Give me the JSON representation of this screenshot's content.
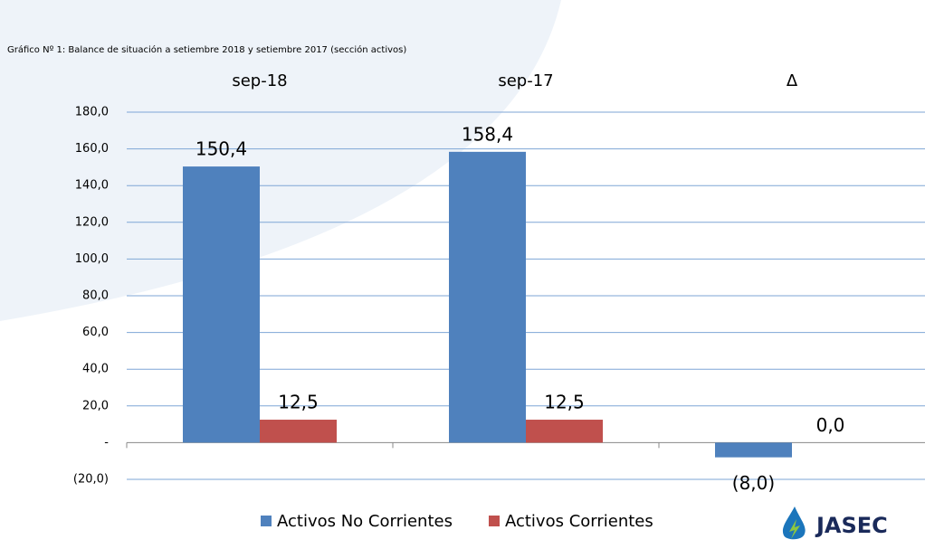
{
  "chart_data": {
    "type": "bar",
    "title": "Gráfico Nº 1: Balance de situación a setiembre 2018 y  setiembre 2017  (sección activos)",
    "categories": [
      "sep-18",
      "sep-17",
      "Δ"
    ],
    "series": [
      {
        "name": "Activos No Corrientes",
        "color": "#4f81bd",
        "values": [
          150.4,
          158.4,
          -8.0
        ],
        "value_labels": [
          "150,4",
          "158,4",
          "(8,0)"
        ]
      },
      {
        "name": "Activos Corrientes",
        "color": "#c0504d",
        "values": [
          12.5,
          12.5,
          0.0
        ],
        "value_labels": [
          "12,5",
          "12,5",
          "0,0"
        ]
      }
    ],
    "ylim": [
      -20,
      180
    ],
    "yticks": [
      {
        "value": -20,
        "label": "(20,0)"
      },
      {
        "value": 0,
        "label": "-"
      },
      {
        "value": 20,
        "label": "20,0"
      },
      {
        "value": 40,
        "label": "40,0"
      },
      {
        "value": 60,
        "label": "60,0"
      },
      {
        "value": 80,
        "label": "80,0"
      },
      {
        "value": 100,
        "label": "100,0"
      },
      {
        "value": 120,
        "label": "120,0"
      },
      {
        "value": 140,
        "label": "140,0"
      },
      {
        "value": 160,
        "label": "160,0"
      },
      {
        "value": 180,
        "label": "180,0"
      }
    ],
    "grid": true,
    "legend": "bottom",
    "logo": "JASEC"
  }
}
